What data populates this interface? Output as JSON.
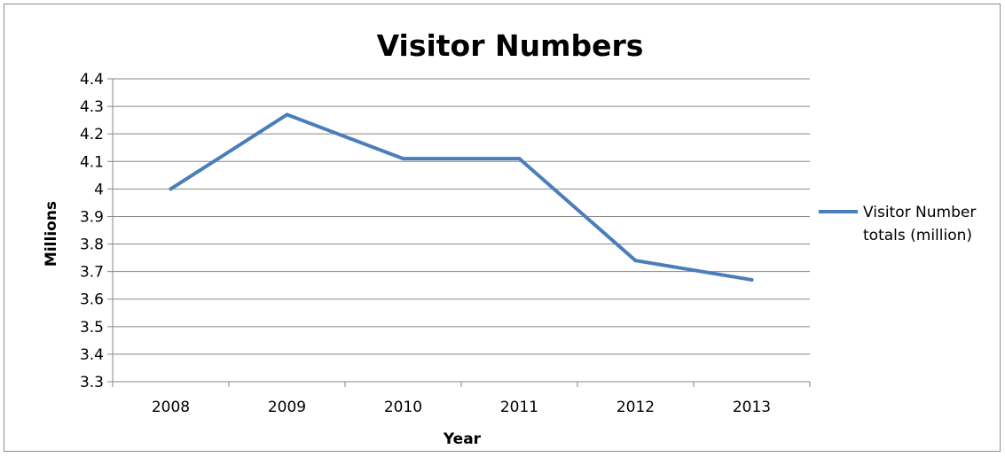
{
  "chart_data": {
    "type": "line",
    "title": "Visitor Numbers",
    "xlabel": "Year",
    "ylabel": "Millions",
    "categories": [
      "2008",
      "2009",
      "2010",
      "2011",
      "2012",
      "2013"
    ],
    "series": [
      {
        "name_lines": [
          "Visitor Number",
          "totals (million)"
        ],
        "values": [
          4.0,
          4.27,
          4.11,
          4.11,
          3.74,
          3.67
        ],
        "color": "#4a7ebb"
      }
    ],
    "ylim": [
      3.3,
      4.4
    ],
    "yticks": [
      "3.3",
      "3.4",
      "3.5",
      "3.6",
      "3.7",
      "3.8",
      "3.9",
      "4",
      "4.1",
      "4.2",
      "4.3",
      "4.4"
    ],
    "grid": true,
    "legend_position": "right"
  },
  "colors": {
    "gridline": "#878787",
    "axis": "#878787"
  }
}
